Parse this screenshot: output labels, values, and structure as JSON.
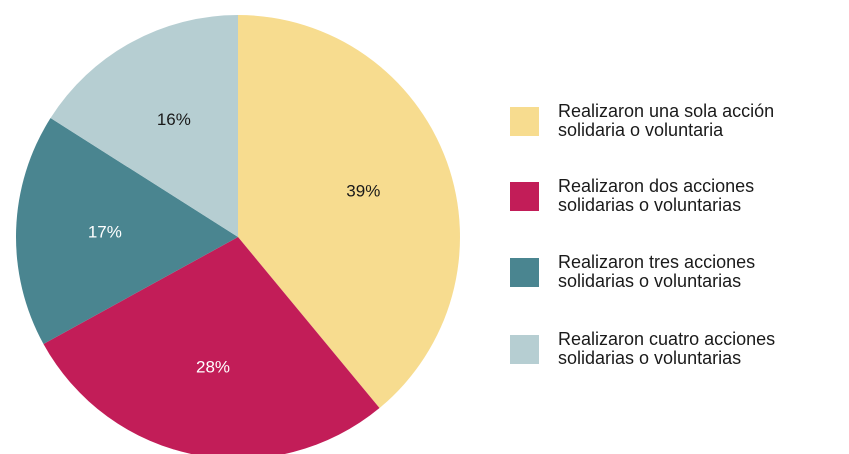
{
  "chart_data": {
    "type": "pie",
    "categories": [
      "Realizaron una sola acción solidaria o voluntaria",
      "Realizaron dos acciones solidarias o voluntarias",
      "Realizaron tres acciones solidarias o voluntarias",
      "Realizaron cuatro acciones solidarias o voluntarias"
    ],
    "values": [
      39,
      28,
      17,
      16
    ],
    "value_labels": [
      "39%",
      "28%",
      "17%",
      "16%"
    ],
    "colors": [
      "#f7dc8f",
      "#c21d58",
      "#4a8590",
      "#b6ced2"
    ],
    "label_colors": [
      "#1a1a1a",
      "#ffffff",
      "#ffffff",
      "#1a1a1a"
    ],
    "legend": "right"
  }
}
